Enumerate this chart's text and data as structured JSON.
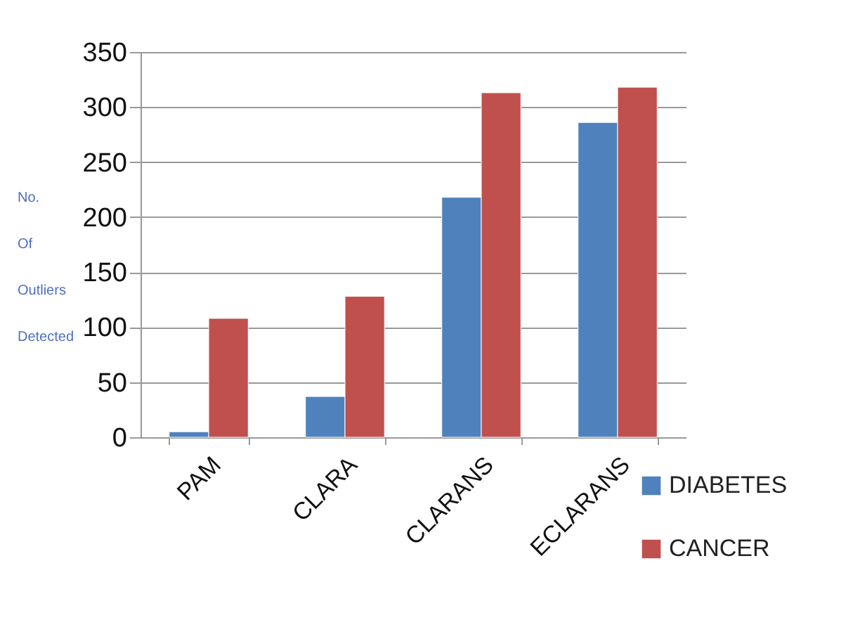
{
  "chart_data": {
    "type": "bar",
    "ylabel": "No. Of Outliers Detected",
    "categories": [
      "PAM",
      "CLARA",
      "CLARANS",
      "ECLARANS"
    ],
    "series": [
      {
        "name": "DIABETES",
        "color": "#4f81bd",
        "values": [
          5,
          37,
          218,
          286
        ]
      },
      {
        "name": "CANCER",
        "color": "#c0504d",
        "values": [
          108,
          128,
          313,
          318
        ]
      }
    ],
    "ylim": [
      0,
      350
    ],
    "yticks": [
      0,
      50,
      100,
      150,
      200,
      250,
      300,
      350
    ],
    "grid": "y",
    "legend": "bottom right"
  }
}
